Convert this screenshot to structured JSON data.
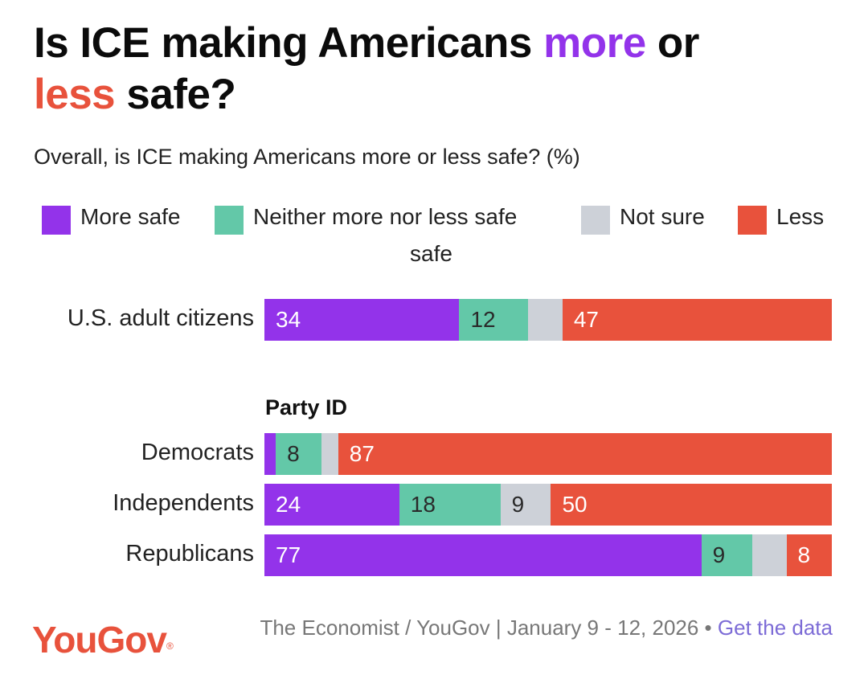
{
  "title": {
    "part1": "Is ICE making Americans ",
    "highlight_more": "more",
    "part2": " or",
    "highlight_less": "less",
    "part3": " safe?"
  },
  "subtitle": "Overall, is ICE making Americans more or less safe? (%)",
  "colors": {
    "more_safe": "#9333ea",
    "neither": "#63c8a8",
    "not_sure": "#cdd1d8",
    "less_safe": "#e8523c"
  },
  "legend": [
    {
      "label": "More safe",
      "color": "#9333ea"
    },
    {
      "label": "Neither more nor less safe",
      "color": "#63c8a8"
    },
    {
      "label": "Not sure",
      "color": "#cdd1d8"
    },
    {
      "label": "Less",
      "color": "#e8523c"
    }
  ],
  "legend_wrap": "safe",
  "chart_data": {
    "type": "bar",
    "orientation": "horizontal",
    "stacked": true,
    "xlim": [
      0,
      100
    ],
    "series_order": [
      "More safe",
      "Neither more nor less safe",
      "Not sure",
      "Less safe"
    ],
    "rows": [
      {
        "label": "U.S. adult citizens",
        "group": "",
        "values": [
          34,
          12,
          6,
          47
        ],
        "labels": [
          "34",
          "12",
          "",
          "47"
        ]
      },
      {
        "label": "Democrats",
        "group": "Party ID",
        "values": [
          2,
          8,
          3,
          87
        ],
        "labels": [
          "",
          "8",
          "",
          "87"
        ]
      },
      {
        "label": "Independents",
        "group": "Party ID",
        "values": [
          24,
          18,
          9,
          50
        ],
        "labels": [
          "24",
          "18",
          "9",
          "50"
        ]
      },
      {
        "label": "Republicans",
        "group": "Party ID",
        "values": [
          77,
          9,
          6,
          8
        ],
        "labels": [
          "77",
          "9",
          "",
          "8"
        ]
      }
    ],
    "group_heading": "Party ID"
  },
  "footer": {
    "logo": "YouGov",
    "logo_mark": "®",
    "source": "The Economist / YouGov | January 9 - 12, 2026 •",
    "link": "Get the data"
  }
}
